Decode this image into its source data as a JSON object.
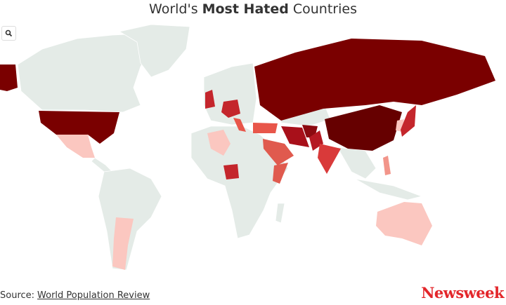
{
  "header": {
    "title": {
      "prefix": "World's",
      "emphasis": "Most Hated",
      "suffix": "Countries"
    }
  },
  "footer": {
    "source_label": "Source:",
    "source_link": "World Population Review",
    "brand": "Newsweek"
  }
}
